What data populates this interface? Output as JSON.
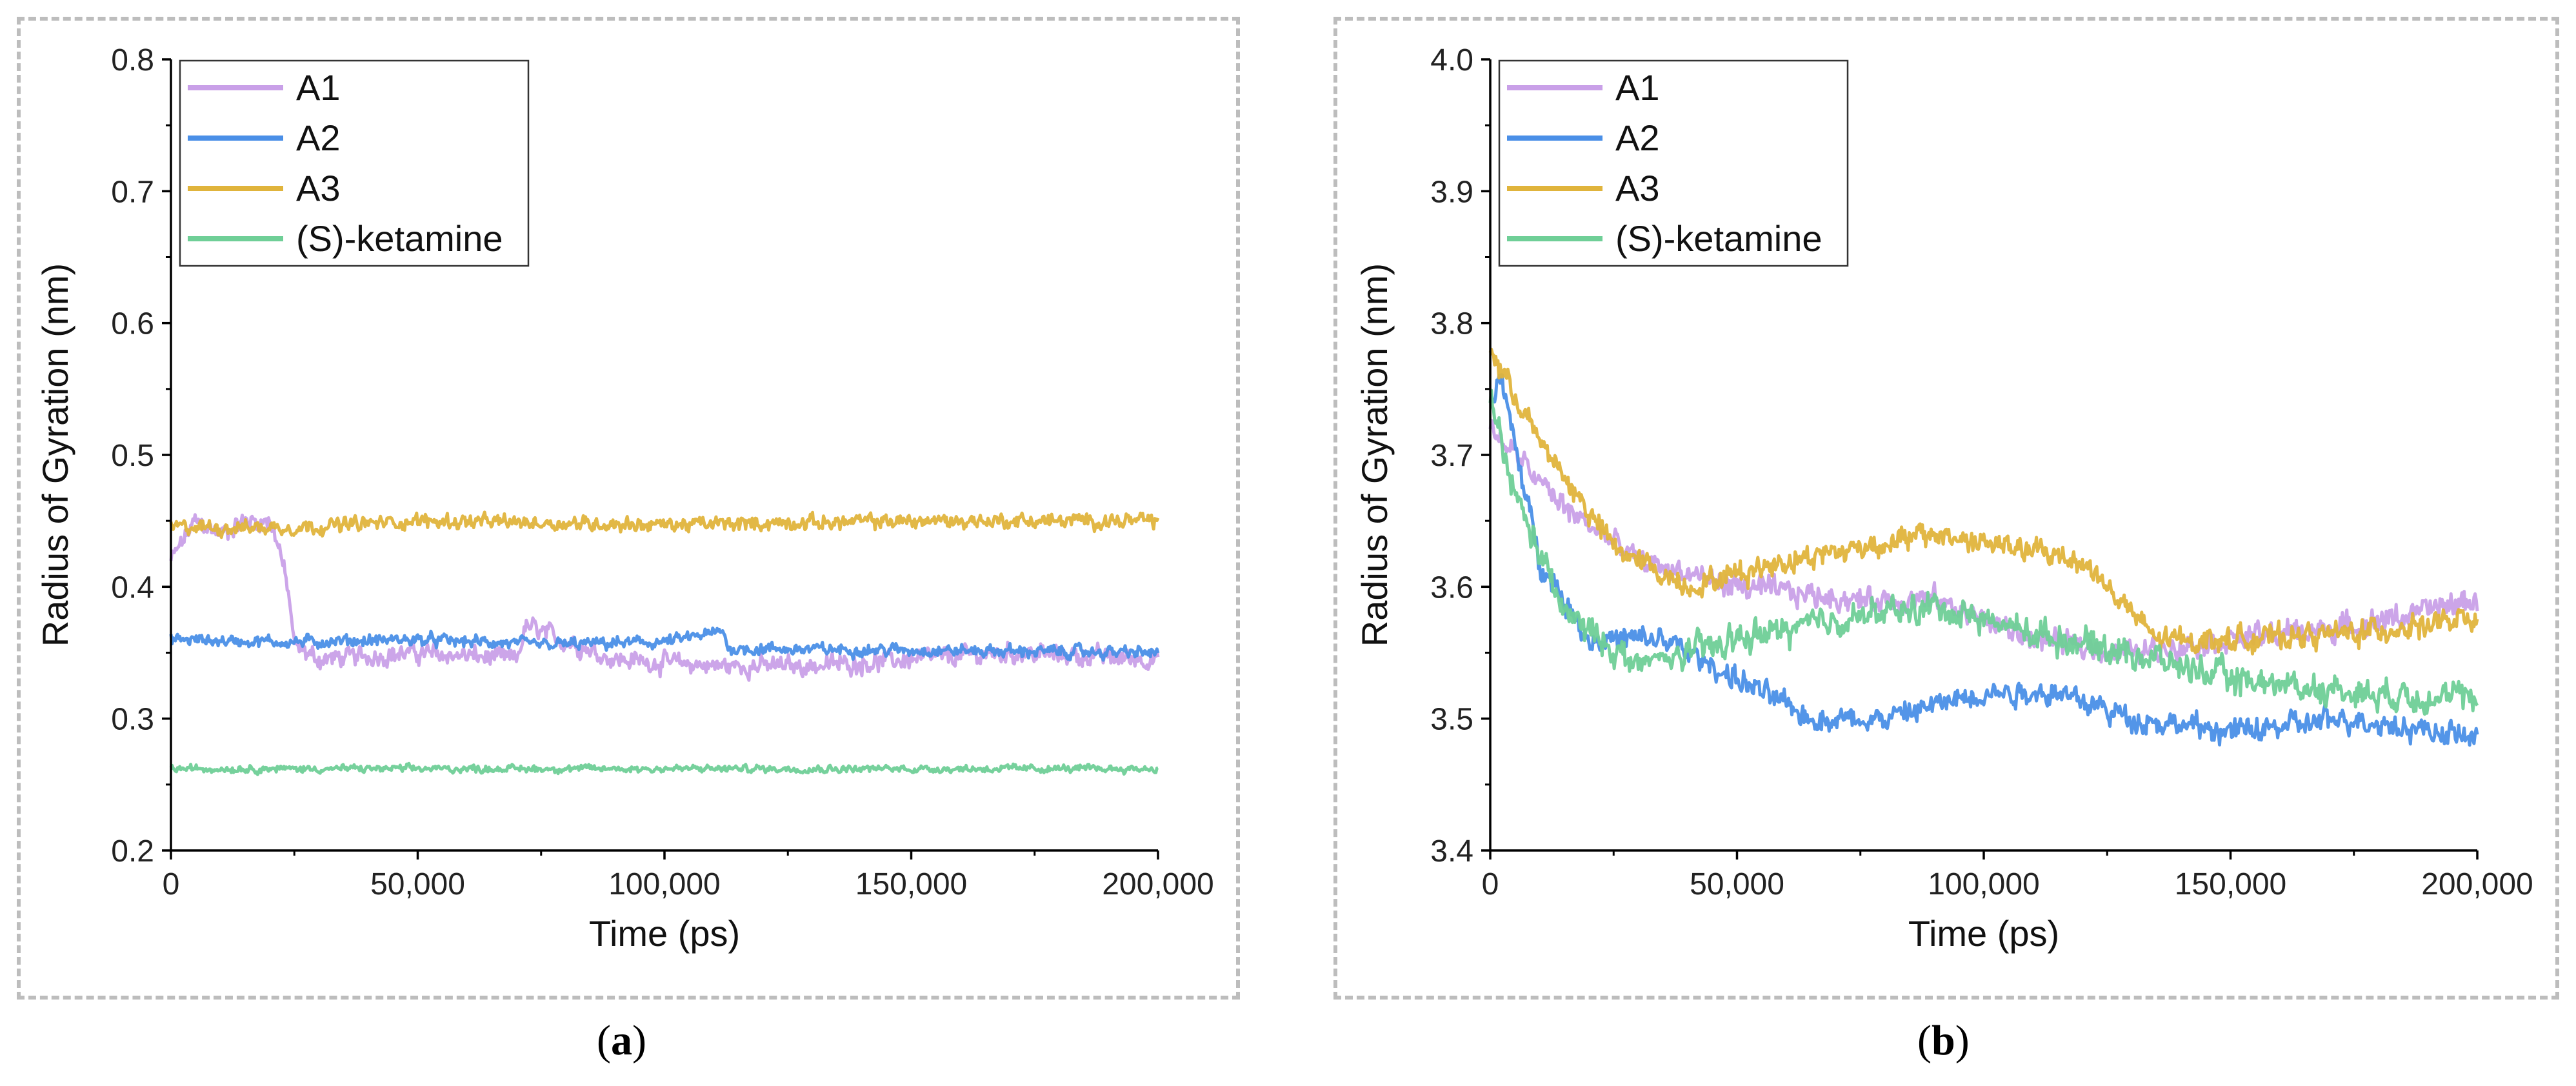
{
  "colors": {
    "A1": "#c9a0e8",
    "A2": "#4a8fe7",
    "A3": "#e0b43c",
    "ketamine": "#6fcf97"
  },
  "panels": [
    {
      "caption_letter": "a"
    },
    {
      "caption_letter": "b"
    }
  ],
  "chart_data": [
    {
      "type": "line",
      "title": "",
      "xlabel": "Time (ps)",
      "ylabel": "Radius of Gyration (nm)",
      "xlim": [
        0,
        200000
      ],
      "ylim": [
        0.2,
        0.8
      ],
      "xticks": [
        0,
        50000,
        100000,
        150000,
        200000
      ],
      "xtick_labels": [
        "0",
        "50,000",
        "100,000",
        "150,000",
        "200,000"
      ],
      "yticks": [
        0.2,
        0.3,
        0.4,
        0.5,
        0.6,
        0.7,
        0.8
      ],
      "ytick_labels": [
        "0.2",
        "0.3",
        "0.4",
        "0.5",
        "0.6",
        "0.7",
        "0.8"
      ],
      "legend_position": "top-left",
      "series": [
        {
          "name": "A1",
          "color": "#c9a0e8",
          "x": [
            0,
            5000,
            10000,
            15000,
            20000,
            22000,
            24000,
            25000,
            30000,
            50000,
            70000,
            72000,
            90000,
            110000,
            130000,
            150000,
            170000,
            200000
          ],
          "y": [
            0.42,
            0.45,
            0.44,
            0.45,
            0.45,
            0.43,
            0.39,
            0.355,
            0.345,
            0.35,
            0.345,
            0.37,
            0.345,
            0.34,
            0.34,
            0.345,
            0.35,
            0.345
          ],
          "noise": 0.008
        },
        {
          "name": "A2",
          "color": "#4a8fe7",
          "x": [
            0,
            25000,
            50000,
            75000,
            100000,
            112000,
            113000,
            150000,
            200000
          ],
          "y": [
            0.36,
            0.358,
            0.36,
            0.356,
            0.358,
            0.366,
            0.353,
            0.352,
            0.35
          ],
          "noise": 0.005
        },
        {
          "name": "A3",
          "color": "#e0b43c",
          "x": [
            0,
            25000,
            50000,
            100000,
            150000,
            200000
          ],
          "y": [
            0.445,
            0.445,
            0.45,
            0.447,
            0.45,
            0.45
          ],
          "noise": 0.006
        },
        {
          "name": "(S)-ketamine",
          "color": "#6fcf97",
          "x": [
            0,
            200000
          ],
          "y": [
            0.262,
            0.262
          ],
          "noise": 0.003
        }
      ]
    },
    {
      "type": "line",
      "title": "",
      "xlabel": "Time (ps)",
      "ylabel": "Radius of Gyration (nm)",
      "xlim": [
        0,
        200000
      ],
      "ylim": [
        3.4,
        4.0
      ],
      "xticks": [
        0,
        50000,
        100000,
        150000,
        200000
      ],
      "xtick_labels": [
        "0",
        "50,000",
        "100,000",
        "150,000",
        "200,000"
      ],
      "yticks": [
        3.4,
        3.5,
        3.6,
        3.7,
        3.8,
        3.9,
        4.0
      ],
      "ytick_labels": [
        "3.4",
        "3.5",
        "3.6",
        "3.7",
        "3.8",
        "3.9",
        "4.0"
      ],
      "legend_position": "top-left",
      "series": [
        {
          "name": "A1",
          "color": "#c9a0e8",
          "x": [
            0,
            5000,
            15000,
            30000,
            50000,
            75000,
            90000,
            110000,
            130000,
            150000,
            175000,
            200000
          ],
          "y": [
            3.72,
            3.7,
            3.66,
            3.62,
            3.6,
            3.59,
            3.59,
            3.56,
            3.55,
            3.56,
            3.57,
            3.59
          ],
          "noise": 0.01
        },
        {
          "name": "A2",
          "color": "#4a8fe7",
          "x": [
            0,
            2000,
            10000,
            20000,
            35000,
            50000,
            65000,
            80000,
            100000,
            115000,
            130000,
            150000,
            175000,
            200000
          ],
          "y": [
            3.74,
            3.76,
            3.62,
            3.56,
            3.56,
            3.53,
            3.5,
            3.5,
            3.52,
            3.52,
            3.5,
            3.49,
            3.5,
            3.485
          ],
          "noise": 0.01
        },
        {
          "name": "A3",
          "color": "#e0b43c",
          "x": [
            0,
            10000,
            25000,
            40000,
            60000,
            75000,
            90000,
            105000,
            120000,
            135000,
            150000,
            175000,
            200000
          ],
          "y": [
            3.78,
            3.71,
            3.63,
            3.6,
            3.62,
            3.63,
            3.64,
            3.63,
            3.62,
            3.56,
            3.56,
            3.565,
            3.575
          ],
          "noise": 0.01
        },
        {
          "name": "(S)-ketamine",
          "color": "#6fcf97",
          "x": [
            0,
            5000,
            15000,
            30000,
            50000,
            70000,
            90000,
            110000,
            130000,
            150000,
            175000,
            200000
          ],
          "y": [
            3.74,
            3.67,
            3.58,
            3.54,
            3.56,
            3.575,
            3.585,
            3.565,
            3.55,
            3.53,
            3.52,
            3.515
          ],
          "noise": 0.012
        }
      ]
    }
  ]
}
